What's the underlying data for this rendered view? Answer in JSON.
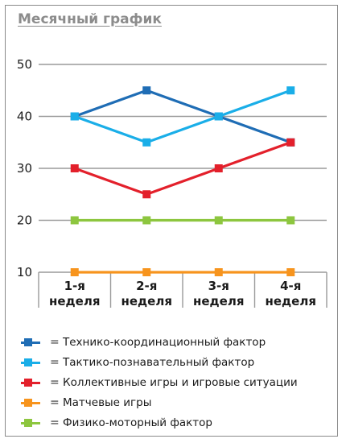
{
  "chart_data": {
    "type": "line",
    "title": "Месячный график",
    "categories": [
      [
        "1-я",
        "неделя"
      ],
      [
        "2-я",
        "неделя"
      ],
      [
        "3-я",
        "неделя"
      ],
      [
        "4-я",
        "неделя"
      ]
    ],
    "ylim": [
      10,
      50
    ],
    "yticks": [
      10,
      20,
      30,
      40,
      50
    ],
    "grid": true,
    "legend_position": "bottom",
    "series": [
      {
        "name": "Технико-координационный фактор",
        "color": "#1f6db5",
        "values": [
          40,
          45,
          40,
          35
        ]
      },
      {
        "name": "Тактико-познавательный фактор",
        "color": "#1aaee8",
        "values": [
          40,
          35,
          40,
          45
        ]
      },
      {
        "name": "Коллективные игры и игровые ситуации",
        "color": "#e3202b",
        "values": [
          30,
          25,
          30,
          35
        ]
      },
      {
        "name": "Матчевые игры",
        "color": "#f7941d",
        "values": [
          10,
          10,
          10,
          10
        ]
      },
      {
        "name": "Физико-моторный фактор",
        "color": "#8dc63f",
        "values": [
          20,
          20,
          20,
          20
        ]
      }
    ]
  },
  "legend": {
    "separator": "="
  }
}
